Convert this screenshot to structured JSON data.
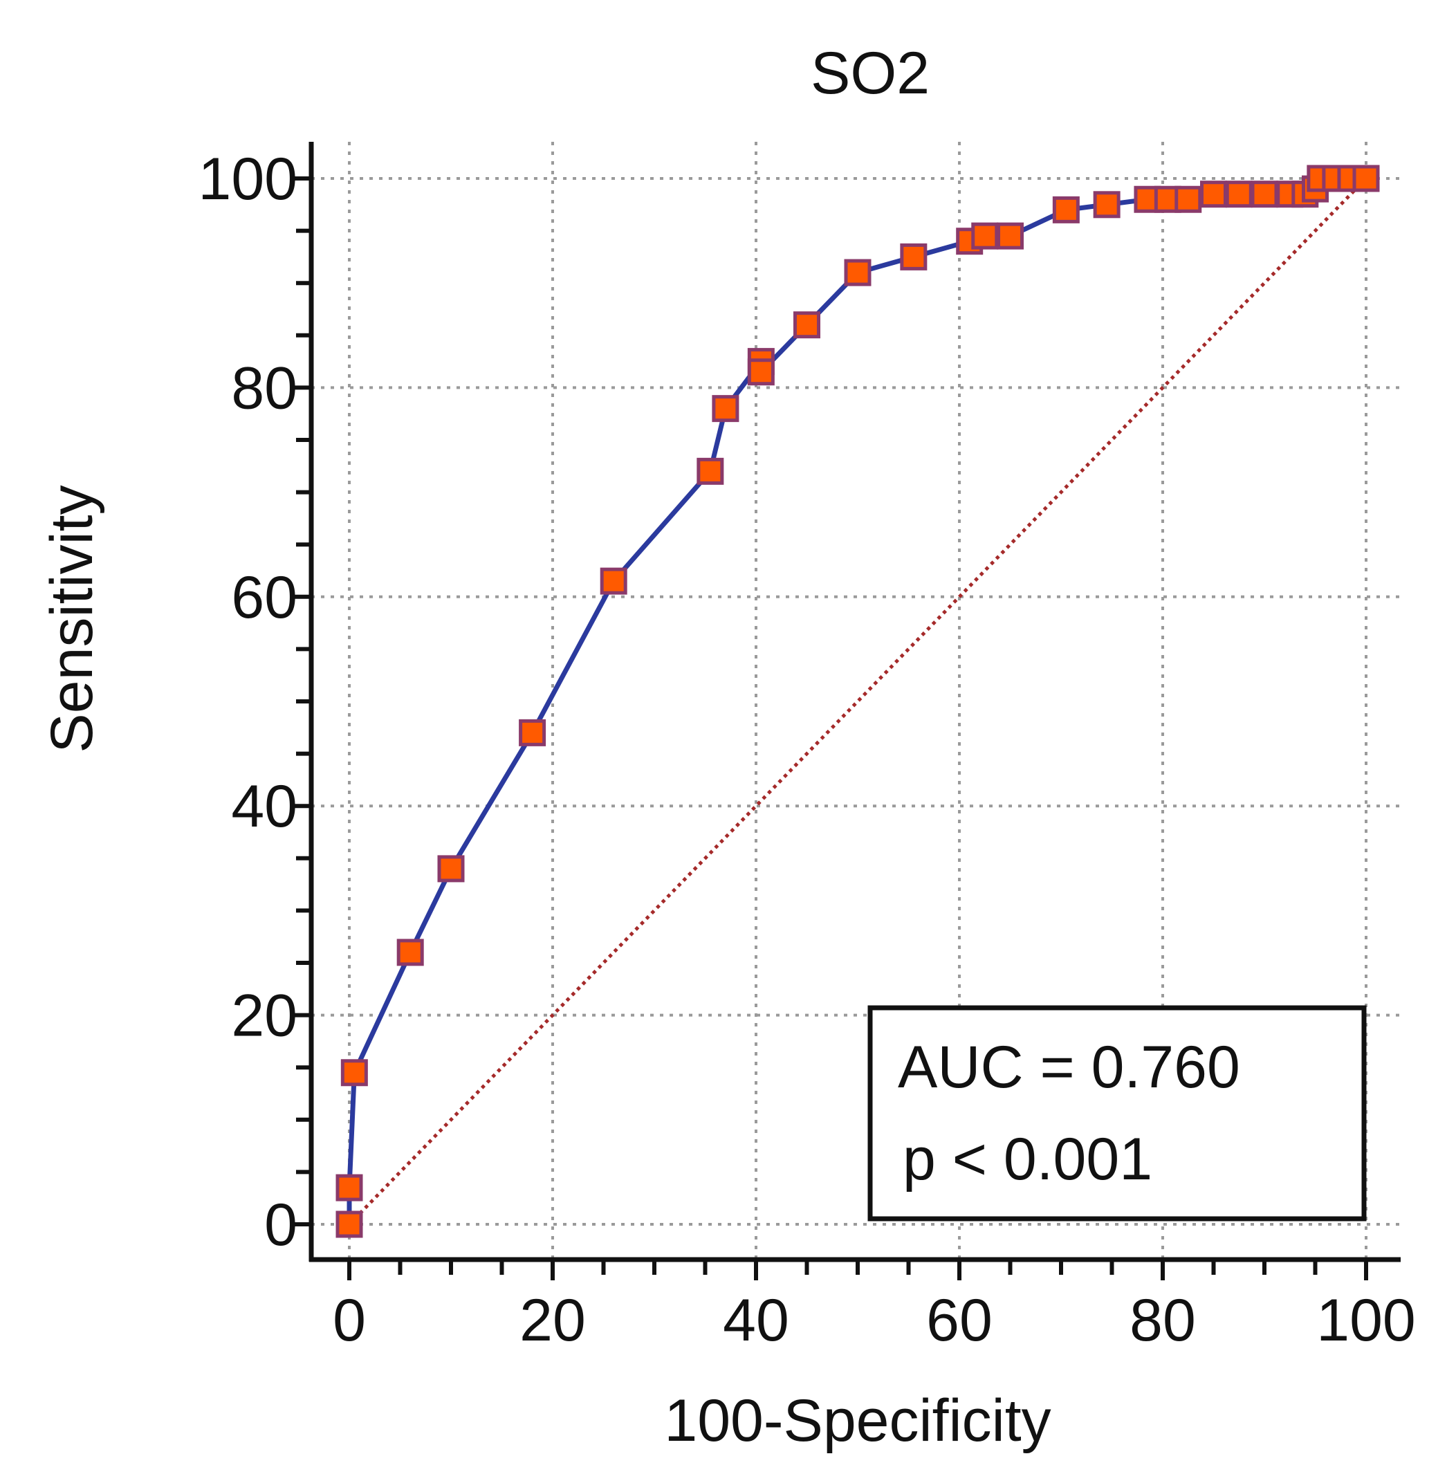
{
  "chart_data": {
    "type": "line",
    "title": "SO2",
    "xlabel": "100-Specificity",
    "ylabel": "Sensitivity",
    "xlim": [
      0,
      100
    ],
    "ylim": [
      0,
      100
    ],
    "x_ticks": [
      0,
      20,
      40,
      60,
      80,
      100
    ],
    "y_ticks": [
      0,
      20,
      40,
      60,
      80,
      100
    ],
    "grid": true,
    "series": [
      {
        "name": "ROC curve",
        "color": "#2b3a9e",
        "marker_fill": "#ff5a00",
        "marker_edge": "#8a3a6a",
        "points": [
          {
            "x": 0,
            "y": 0
          },
          {
            "x": 0,
            "y": 3.5
          },
          {
            "x": 0.5,
            "y": 14.5
          },
          {
            "x": 6,
            "y": 26
          },
          {
            "x": 10,
            "y": 34
          },
          {
            "x": 18,
            "y": 47
          },
          {
            "x": 26,
            "y": 61.5
          },
          {
            "x": 35.5,
            "y": 72
          },
          {
            "x": 37,
            "y": 78
          },
          {
            "x": 40.5,
            "y": 82.5
          },
          {
            "x": 40.5,
            "y": 81.5
          },
          {
            "x": 45,
            "y": 86
          },
          {
            "x": 50,
            "y": 91
          },
          {
            "x": 55.5,
            "y": 92.5
          },
          {
            "x": 61,
            "y": 94
          },
          {
            "x": 62.5,
            "y": 94.5
          },
          {
            "x": 65,
            "y": 94.5
          },
          {
            "x": 70.5,
            "y": 97
          },
          {
            "x": 74.5,
            "y": 97.5
          },
          {
            "x": 78.5,
            "y": 98
          },
          {
            "x": 80.5,
            "y": 98
          },
          {
            "x": 82.5,
            "y": 98
          },
          {
            "x": 85,
            "y": 98.5
          },
          {
            "x": 87.5,
            "y": 98.5
          },
          {
            "x": 90,
            "y": 98.5
          },
          {
            "x": 92.5,
            "y": 98.5
          },
          {
            "x": 94,
            "y": 98.5
          },
          {
            "x": 95,
            "y": 99
          },
          {
            "x": 95.5,
            "y": 100
          },
          {
            "x": 97,
            "y": 100
          },
          {
            "x": 98.5,
            "y": 100
          },
          {
            "x": 100,
            "y": 100
          }
        ]
      },
      {
        "name": "Reference line",
        "color": "#a52a2a",
        "style": "dotted",
        "points": [
          {
            "x": 0,
            "y": 0
          },
          {
            "x": 100,
            "y": 100
          }
        ]
      }
    ],
    "annotations": {
      "auc": "AUC = 0.760",
      "p": "p < 0.001",
      "placement": "bottom-right"
    }
  }
}
